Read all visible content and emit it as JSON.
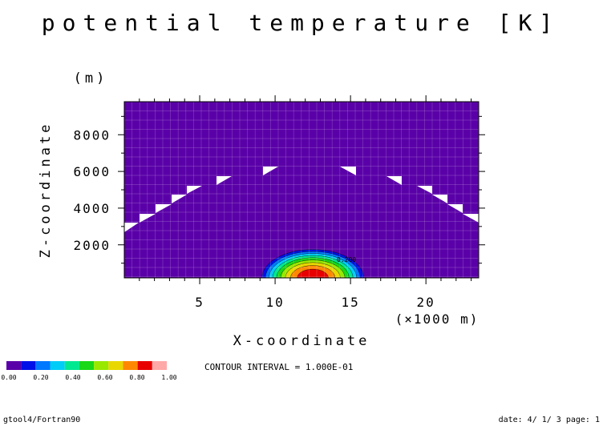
{
  "chart_data": {
    "type": "heatmap",
    "title": "potential temperature [K]",
    "xlabel": "X-coordinate",
    "ylabel": "Z-coordinate",
    "x_unit": "(×1000 m)",
    "y_unit": "(m)",
    "xlim": [
      0,
      23.5
    ],
    "ylim": [
      200,
      9800
    ],
    "x_ticks": [
      "5",
      "10",
      "15",
      "20"
    ],
    "y_ticks": [
      "2000",
      "4000",
      "6000",
      "8000"
    ],
    "contour_levels": [
      0.0,
      0.1,
      0.2,
      0.3,
      0.4,
      0.5,
      0.6,
      0.7,
      0.8,
      0.9,
      1.0
    ],
    "level_colors": [
      "#5a00a8",
      "#0010e8",
      "#0078ff",
      "#00ccf8",
      "#00e890",
      "#18d818",
      "#98e800",
      "#e8d800",
      "#ff8800",
      "#e80000",
      "#ffa8a8"
    ],
    "perturbation": {
      "center_x": 12.5,
      "center_z": 200,
      "radius_x": 3.6,
      "radius_z": 1650,
      "max": 1.0
    },
    "grid": true,
    "annotation": "0.200",
    "contour_interval_text": "CONTOUR INTERVAL = 1.000E-01"
  },
  "colorbar": {
    "labels": [
      "0.00",
      "0.20",
      "0.40",
      "0.60",
      "0.80",
      "1.00"
    ]
  },
  "footer": {
    "left": "gtool4/Fortran90",
    "right": "date: 4/ 1/ 3 page: 1"
  }
}
